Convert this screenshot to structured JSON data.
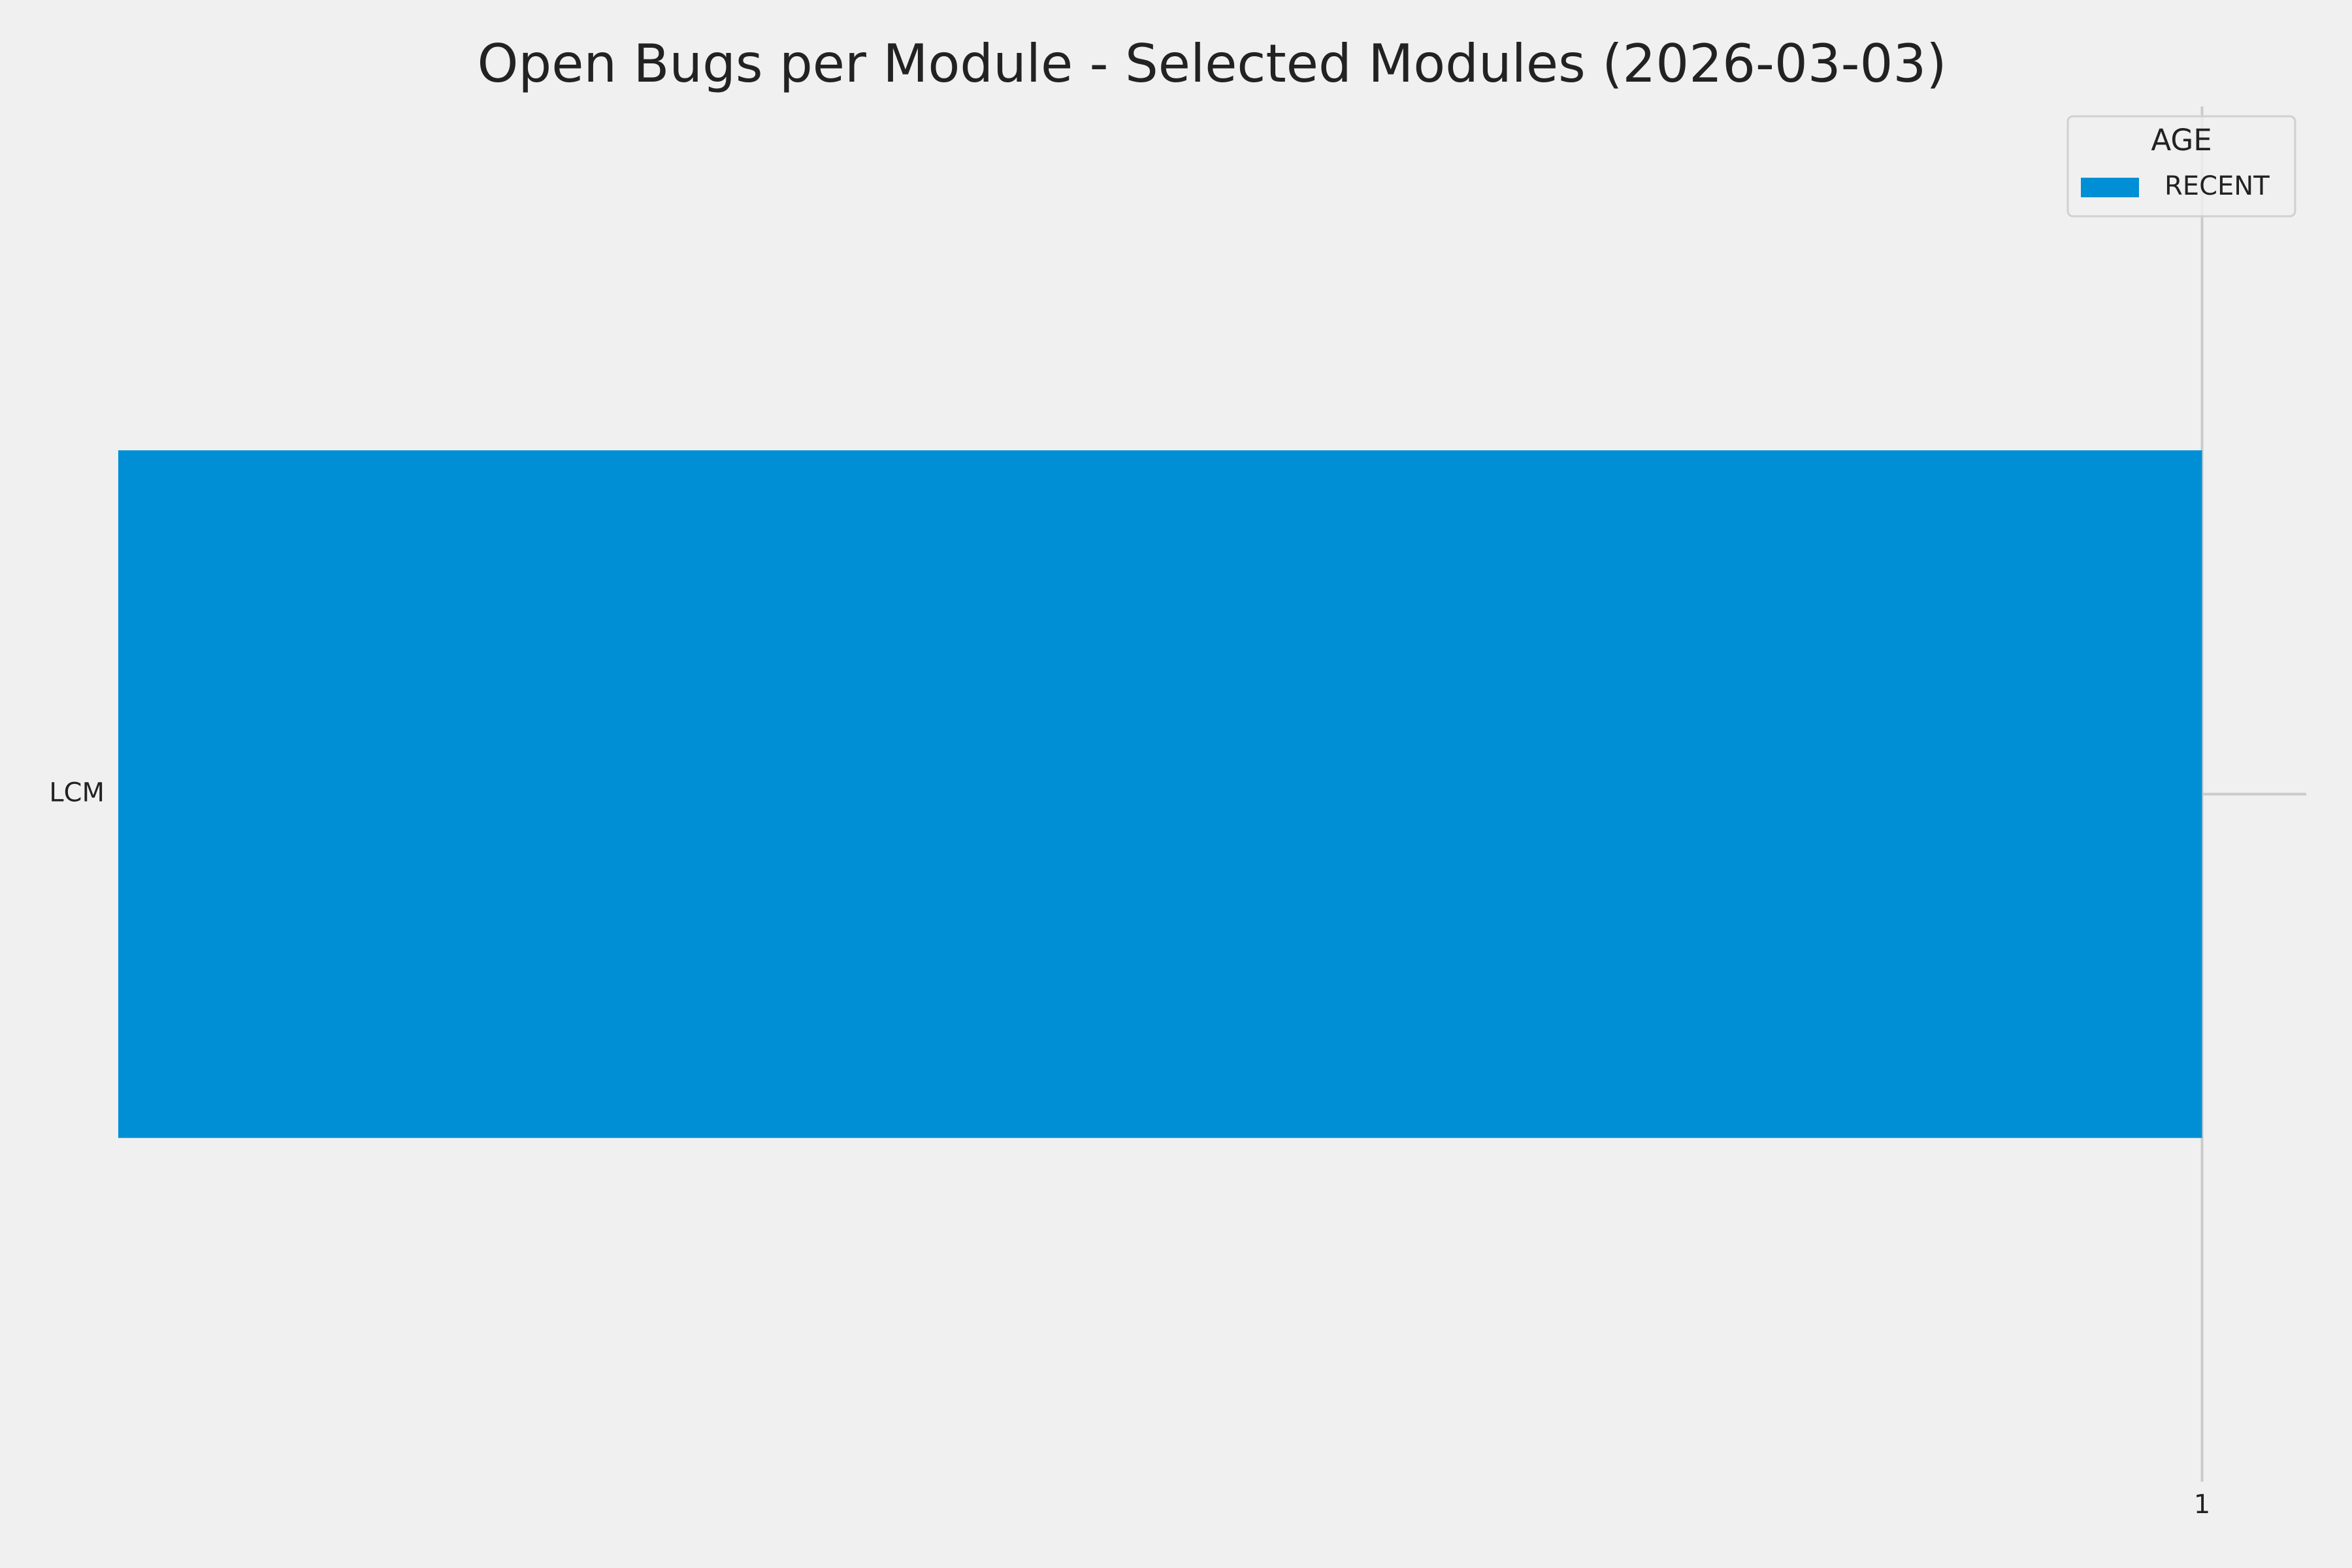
{
  "chart_data": {
    "type": "bar",
    "orientation": "horizontal",
    "stacked": true,
    "title": "Open Bugs per Module - Selected Modules (2026-03-03)",
    "xlabel": "",
    "ylabel": "",
    "categories": [
      "LCM"
    ],
    "series": [
      {
        "name": "RECENT",
        "values": [
          1
        ],
        "color": "#008fd5"
      }
    ],
    "xlim": [
      0,
      1.05
    ],
    "xticks": [
      1
    ],
    "xtick_labels": [
      "1"
    ],
    "grid": true,
    "legend": {
      "title": "AGE",
      "placement": "top-right"
    },
    "colors": {
      "background": "#f0f0f0",
      "grid": "#cbcbcb",
      "text": "#222222"
    }
  }
}
